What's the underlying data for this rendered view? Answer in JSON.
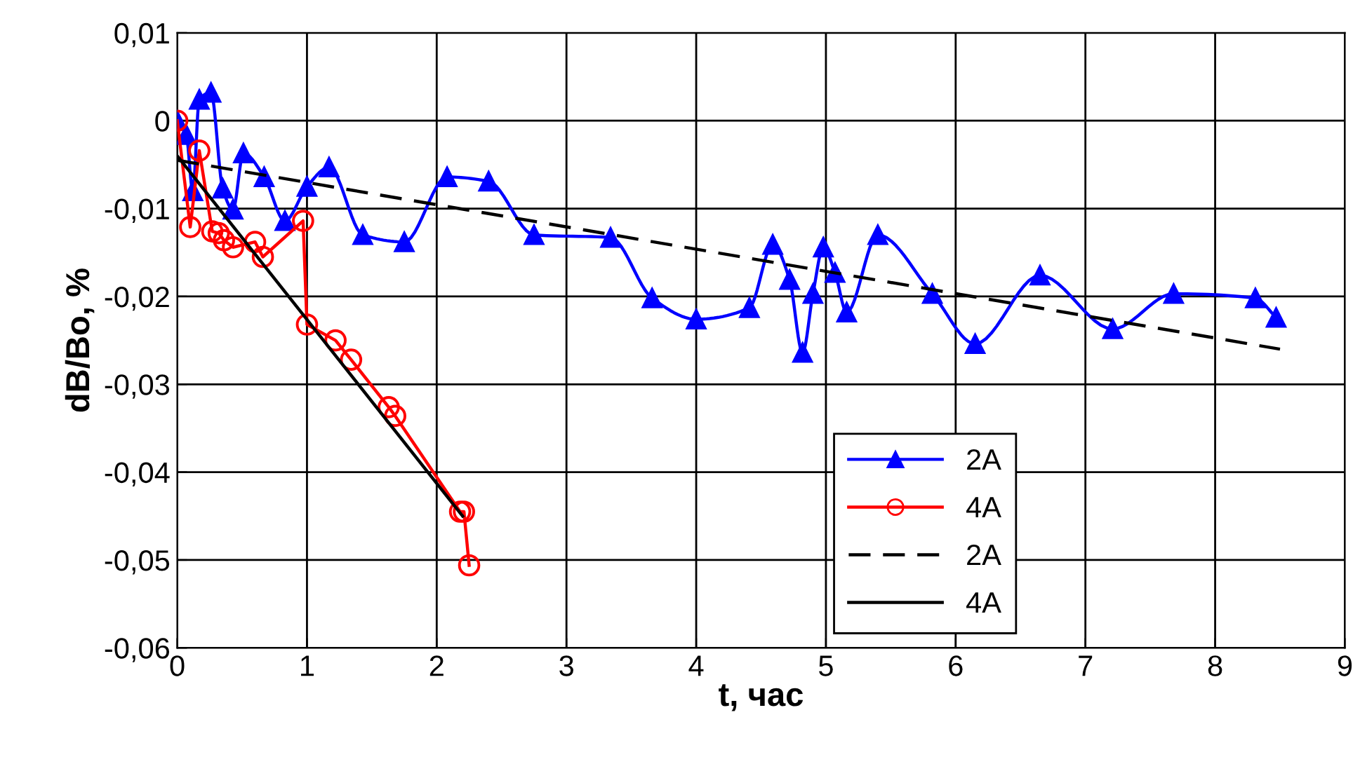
{
  "chart_data": {
    "type": "line",
    "xlabel": "t, час",
    "ylabel": "dB/Bo, %",
    "xlim": [
      0,
      9
    ],
    "xticks": [
      0,
      1,
      2,
      3,
      4,
      5,
      6,
      7,
      8,
      9
    ],
    "ylim": [
      -0.06,
      0.01
    ],
    "yticks": [
      {
        "value": -0.06,
        "label": "-0,06"
      },
      {
        "value": -0.05,
        "label": "-0,05"
      },
      {
        "value": -0.04,
        "label": "-0,04"
      },
      {
        "value": -0.03,
        "label": "-0,03"
      },
      {
        "value": -0.02,
        "label": "-0,02"
      },
      {
        "value": -0.01,
        "label": "-0,01"
      },
      {
        "value": 0,
        "label": "0"
      },
      {
        "value": 0.01,
        "label": "0,01"
      }
    ],
    "grid": true,
    "legend": "bottom",
    "series": [
      {
        "name": "2A",
        "color": "#0000ff",
        "marker": "triangle",
        "line_style": "solid",
        "x": [
          0,
          0.07,
          0.12,
          0.17,
          0.26,
          0.35,
          0.43,
          0.51,
          0.67,
          0.83,
          1.0,
          1.17,
          1.43,
          1.75,
          2.08,
          2.4,
          2.75,
          3.34,
          3.66,
          4.0,
          4.41,
          4.59,
          4.72,
          4.82,
          4.9,
          4.98,
          5.07,
          5.16,
          5.4,
          5.82,
          6.15,
          6.65,
          7.21,
          7.68,
          8.31,
          8.47
        ],
        "values": [
          0,
          -0.0016,
          -0.008,
          0.0024,
          0.0032,
          -0.0077,
          -0.0101,
          -0.0037,
          -0.0064,
          -0.0114,
          -0.0075,
          -0.0053,
          -0.013,
          -0.0138,
          -0.0064,
          -0.0069,
          -0.013,
          -0.0133,
          -0.0202,
          -0.0226,
          -0.0213,
          -0.0141,
          -0.0181,
          -0.0264,
          -0.0197,
          -0.0144,
          -0.0173,
          -0.0218,
          -0.013,
          -0.0197,
          -0.0254,
          -0.0176,
          -0.0237,
          -0.0197,
          -0.0202,
          -0.0224
        ]
      },
      {
        "name": "4A",
        "color": "#ff0000",
        "marker": "circle",
        "line_style": "solid",
        "x": [
          0,
          0.1,
          0.17,
          0.27,
          0.32,
          0.36,
          0.43,
          0.6,
          0.66,
          0.97,
          1.0,
          1.22,
          1.34,
          1.63,
          1.68,
          2.18,
          2.21,
          2.25
        ],
        "values": [
          0,
          -0.0121,
          -0.0034,
          -0.0126,
          -0.0128,
          -0.0136,
          -0.0144,
          -0.0138,
          -0.0155,
          -0.0114,
          -0.0232,
          -0.025,
          -0.0272,
          -0.0326,
          -0.0336,
          -0.0445,
          -0.0445,
          -0.0506
        ]
      },
      {
        "name": "2A",
        "color": "#000000",
        "marker": "none",
        "line_style": "dashed",
        "x": [
          0,
          8.5
        ],
        "values": [
          -0.0045,
          -0.026
        ]
      },
      {
        "name": "4A",
        "color": "#000000",
        "marker": "none",
        "line_style": "solid",
        "x": [
          0,
          2.2
        ],
        "values": [
          -0.004,
          -0.045
        ]
      }
    ]
  }
}
